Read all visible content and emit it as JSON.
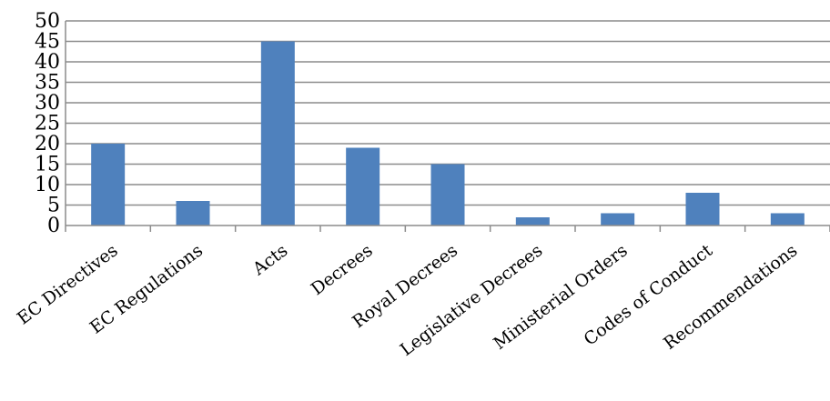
{
  "chart_data": {
    "type": "bar",
    "title": "",
    "xlabel": "",
    "ylabel": "",
    "categories": [
      "EC Directives",
      "EC Regulations",
      "Acts",
      "Decrees",
      "Royal Decrees",
      "Legislative Decrees",
      "Ministerial Orders",
      "Codes of Conduct",
      "Recommendations"
    ],
    "values": [
      20,
      6,
      45,
      19,
      15,
      2,
      3,
      8,
      3
    ],
    "ylim": [
      0,
      50
    ],
    "yticks": [
      0,
      5,
      10,
      15,
      20,
      25,
      30,
      35,
      40,
      45,
      50
    ],
    "grid": true,
    "legend": "none",
    "bar_color": "#4f81bd",
    "grid_color": "#8c8c8c"
  }
}
